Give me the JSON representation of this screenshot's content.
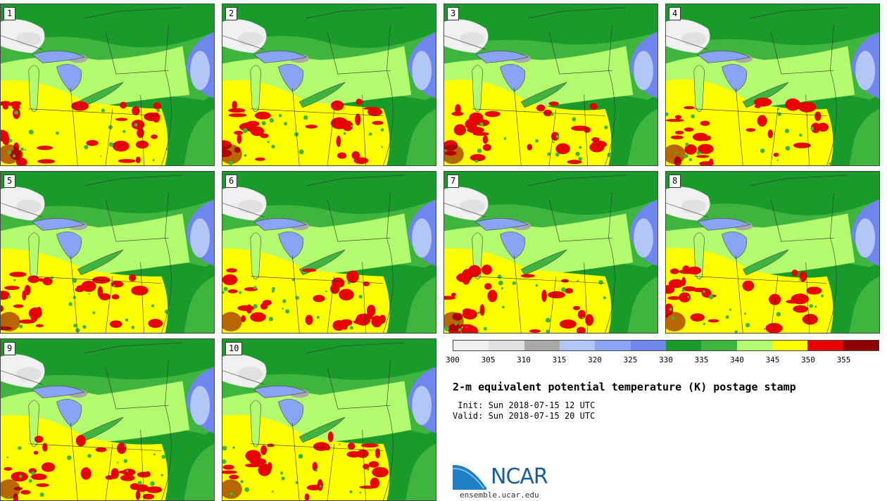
{
  "panels": [
    {
      "label": "1"
    },
    {
      "label": "2"
    },
    {
      "label": "3"
    },
    {
      "label": "4"
    },
    {
      "label": "5"
    },
    {
      "label": "6"
    },
    {
      "label": "7"
    },
    {
      "label": "8"
    },
    {
      "label": "9"
    },
    {
      "label": "10"
    }
  ],
  "colorbar": {
    "ticks": [
      "300",
      "305",
      "310",
      "315",
      "320",
      "325",
      "330",
      "335",
      "340",
      "345",
      "350",
      "355"
    ],
    "colors": [
      "#f0f0f0",
      "#e1e1e1",
      "#a9a9a9",
      "#b3c7f7",
      "#8aa4f5",
      "#6f86ef",
      "#1a9a2a",
      "#3fb53f",
      "#b4fa6e",
      "#ffff00",
      "#e60000",
      "#8b0000"
    ]
  },
  "title": "2-m equivalent potential temperature (K) postage stamp",
  "init": " Init: Sun 2018-07-15 12 UTC",
  "valid": "Valid: Sun 2018-07-15 20 UTC",
  "logo": {
    "text": "NCAR",
    "url": "ensemble.ucar.edu"
  }
}
